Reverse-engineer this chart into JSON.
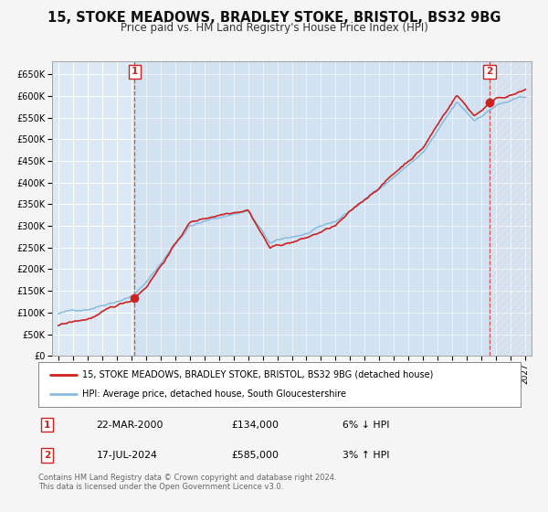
{
  "title": "15, STOKE MEADOWS, BRADLEY STOKE, BRISTOL, BS32 9BG",
  "subtitle": "Price paid vs. HM Land Registry's House Price Index (HPI)",
  "title_fontsize": 10.5,
  "subtitle_fontsize": 8.5,
  "bg_color": "#f5f5f5",
  "plot_bg_color": "#dce9f5",
  "grid_color": "#ffffff",
  "hpi_color": "#88bbdd",
  "price_color": "#cc2222",
  "sale1_price": 134000,
  "sale1_label": "1",
  "sale2_price": 585000,
  "sale2_label": "2",
  "ylim": [
    0,
    680000
  ],
  "yticks": [
    0,
    50000,
    100000,
    150000,
    200000,
    250000,
    300000,
    350000,
    400000,
    450000,
    500000,
    550000,
    600000,
    650000
  ],
  "ytick_labels": [
    "£0",
    "£50K",
    "£100K",
    "£150K",
    "£200K",
    "£250K",
    "£300K",
    "£350K",
    "£400K",
    "£450K",
    "£500K",
    "£550K",
    "£600K",
    "£650K"
  ],
  "xlim_start": 1994.58,
  "xlim_end": 2027.42,
  "legend_line1": "15, STOKE MEADOWS, BRADLEY STOKE, BRISTOL, BS32 9BG (detached house)",
  "legend_line2": "HPI: Average price, detached house, South Gloucestershire",
  "annotation1_date": "22-MAR-2000",
  "annotation1_price": "£134,000",
  "annotation1_hpi": "6% ↓ HPI",
  "annotation2_date": "17-JUL-2024",
  "annotation2_price": "£585,000",
  "annotation2_hpi": "3% ↑ HPI",
  "footer": "Contains HM Land Registry data © Crown copyright and database right 2024.\nThis data is licensed under the Open Government Licence v3.0."
}
